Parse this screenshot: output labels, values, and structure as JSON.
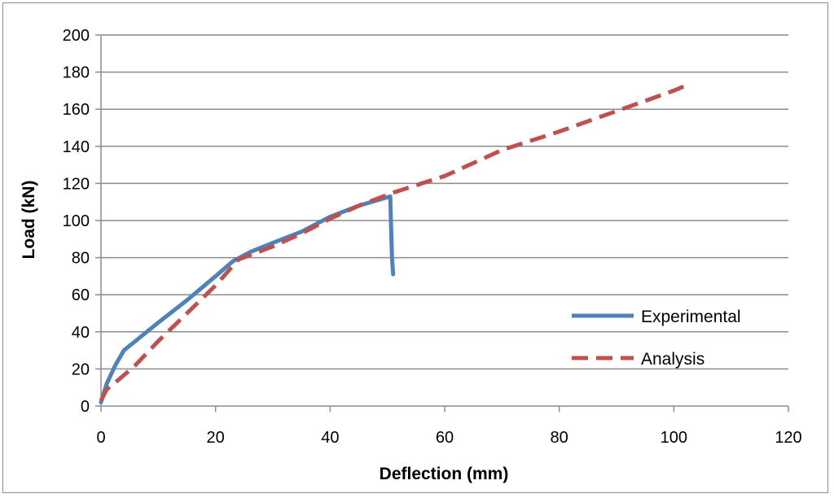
{
  "chart_data": {
    "type": "line",
    "title": "",
    "xlabel": "Deflection (mm)",
    "ylabel": "Load (kN)",
    "xlim": [
      0,
      120
    ],
    "ylim": [
      0,
      200
    ],
    "x_ticks": [
      0,
      20,
      40,
      60,
      80,
      100,
      120
    ],
    "y_ticks": [
      0,
      20,
      40,
      60,
      80,
      100,
      120,
      140,
      160,
      180,
      200
    ],
    "grid": "horizontal",
    "legend_position": "bottom-right",
    "series": [
      {
        "name": "Experimental",
        "style": "solid",
        "color": "#4F81BD",
        "points": [
          [
            0,
            2
          ],
          [
            1,
            12
          ],
          [
            2.5,
            22
          ],
          [
            4,
            30
          ],
          [
            6,
            35
          ],
          [
            10,
            45
          ],
          [
            15,
            57
          ],
          [
            20,
            70
          ],
          [
            23,
            78
          ],
          [
            26,
            83
          ],
          [
            30,
            88
          ],
          [
            35,
            94
          ],
          [
            40,
            102
          ],
          [
            45,
            108
          ],
          [
            50.5,
            113
          ],
          [
            50.6,
            101
          ],
          [
            50.7,
            90
          ],
          [
            50.8,
            80
          ],
          [
            51,
            71
          ]
        ]
      },
      {
        "name": "Analysis",
        "style": "dashed",
        "color": "#C0504D",
        "points": [
          [
            0,
            3
          ],
          [
            1,
            9
          ],
          [
            3,
            14
          ],
          [
            6,
            22
          ],
          [
            10,
            35
          ],
          [
            15,
            50
          ],
          [
            20,
            65
          ],
          [
            24,
            79
          ],
          [
            30,
            86
          ],
          [
            35,
            93
          ],
          [
            40,
            101
          ],
          [
            45,
            108
          ],
          [
            51,
            115
          ],
          [
            60,
            124
          ],
          [
            70,
            138
          ],
          [
            80,
            148
          ],
          [
            90,
            159
          ],
          [
            100,
            170
          ],
          [
            103,
            174
          ]
        ]
      }
    ]
  }
}
